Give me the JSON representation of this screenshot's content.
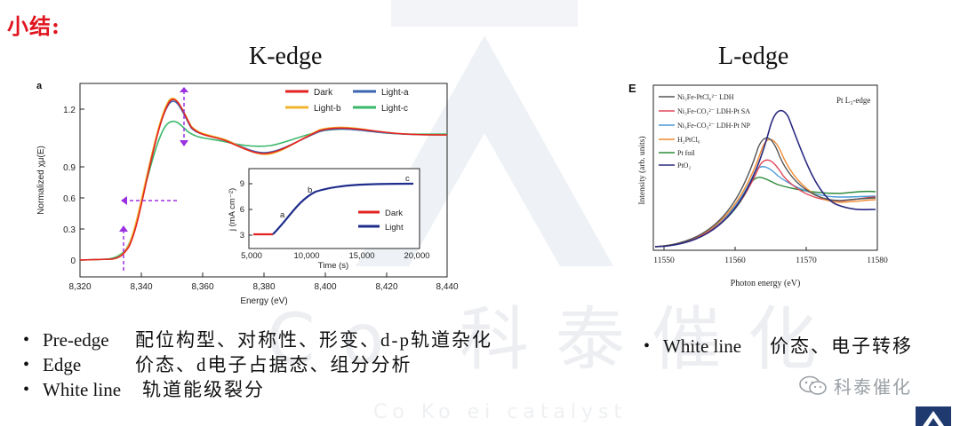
{
  "slide": {
    "title": "小结:",
    "k_heading": "K-edge",
    "l_heading": "L-edge"
  },
  "k_chart": {
    "panel_letter": "a",
    "ylabel": "Normalized χμ(E)",
    "xlabel": "Energy (eV)",
    "xticks": [
      "8,320",
      "8,340",
      "8,360",
      "8,380",
      "8,400",
      "8,420",
      "8,440"
    ],
    "yticks": [
      "0",
      "0.3",
      "0.6",
      "0.9",
      "1.2"
    ],
    "legend": [
      "Dark",
      "Light-a",
      "Light-b",
      "Light-c"
    ],
    "inset": {
      "ylabel": "j (mA cm⁻²)",
      "xlabel": "Time (s)",
      "xticks": [
        "5,000",
        "10,000",
        "15,000",
        "20,000"
      ],
      "yticks": [
        "3",
        "6",
        "9"
      ],
      "legend": [
        "Dark",
        "Light"
      ],
      "point_labels": [
        "a",
        "b",
        "c"
      ]
    }
  },
  "l_chart": {
    "panel_letter": "E",
    "edge_label": "Pt L₃-edge",
    "ylabel": "Intensity (arb. units)",
    "xlabel": "Photon energy (eV)",
    "xticks": [
      "11550",
      "11560",
      "11570",
      "11580"
    ],
    "legend": [
      "Ni₃Fe-PtCl₆²⁻ LDH",
      "Ni₃Fe-CO₃²⁻ LDH-Pt SA",
      "Ni₃Fe-CO₃²⁻ LDH-Pt NP",
      "H₂PtCl₆",
      "Pt foil",
      "PtO₂"
    ]
  },
  "bullets_left": [
    {
      "key": "Pre-edge",
      "text": "配位构型、对称性、形变、d-p轨道杂化"
    },
    {
      "key": "Edge",
      "text": "价态、d电子占据态、组分分析"
    },
    {
      "key": "White line",
      "text": "轨道能级裂分"
    }
  ],
  "bullets_right": [
    {
      "key": "White line",
      "text": "价态、电子转移"
    }
  ],
  "watermark": {
    "big_text": "Co 科泰催化",
    "sub_text": "Co Ko ei catalyst",
    "wechat_label": "科泰催化"
  },
  "colors": {
    "title_red": "#e0141e",
    "dark": "#e32222",
    "light_a": "#3a64b0",
    "light_b": "#f2b430",
    "light_c": "#3ab86a",
    "inset_light": "#1f2d8c",
    "purple": "#9b30e0"
  }
}
